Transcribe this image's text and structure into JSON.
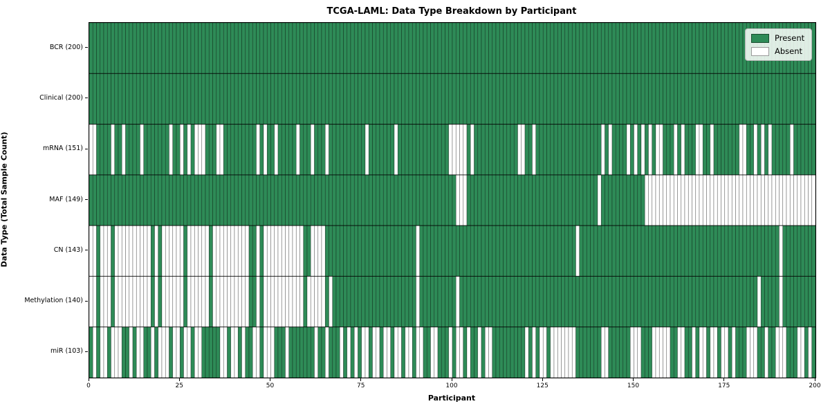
{
  "title": "TCGA-LAML: Data Type Breakdown by Participant",
  "axes": {
    "x_label": "Participant",
    "y_label": "Data Type (Total Sample Count)",
    "x_ticks": [
      0,
      25,
      50,
      75,
      100,
      125,
      150,
      175,
      200
    ]
  },
  "legend": {
    "items": [
      {
        "label": "Present",
        "color": "#2e8b57"
      },
      {
        "label": "Absent",
        "color": "#ffffff"
      }
    ]
  },
  "colors": {
    "present": "#2e8b57",
    "absent": "#ffffff",
    "cell_edge": "#000000",
    "cell_edge_opacity": 0.5,
    "row_separator": "#000000",
    "axis": "#000000"
  },
  "chart_data": {
    "type": "heatmap",
    "title": "TCGA-LAML: Data Type Breakdown by Participant",
    "xlabel": "Participant",
    "ylabel": "Data Type (Total Sample Count)",
    "x_range": [
      0,
      200
    ],
    "n_participants": 200,
    "legend_entries": [
      "Present",
      "Absent"
    ],
    "legend_position": "upper right",
    "rows": [
      {
        "label": "BCR (200)",
        "data_type": "BCR",
        "present_count": 200,
        "absent_indices": []
      },
      {
        "label": "Clinical (200)",
        "data_type": "Clinical",
        "present_count": 200,
        "absent_indices": []
      },
      {
        "label": "mRNA (151)",
        "data_type": "mRNA",
        "present_count": 151,
        "absent_indices": [
          0,
          1,
          6,
          9,
          14,
          22,
          25,
          27,
          29,
          30,
          31,
          35,
          36,
          46,
          48,
          51,
          57,
          61,
          65,
          76,
          84,
          99,
          100,
          101,
          102,
          103,
          105,
          118,
          119,
          122,
          141,
          143,
          148,
          150,
          152,
          154,
          156,
          157,
          161,
          163,
          167,
          168,
          171,
          179,
          180,
          183,
          185,
          187,
          193
        ]
      },
      {
        "label": "MAF (149)",
        "data_type": "MAF",
        "present_count": 149,
        "absent_indices": [
          101,
          102,
          103,
          140,
          153,
          154,
          155,
          156,
          157,
          158,
          159,
          160,
          161,
          162,
          163,
          164,
          165,
          166,
          167,
          168,
          169,
          170,
          171,
          172,
          173,
          174,
          175,
          176,
          177,
          178,
          179,
          180,
          181,
          182,
          183,
          184,
          185,
          186,
          187,
          188,
          189,
          190,
          191,
          192,
          193,
          194,
          195,
          196,
          197,
          198,
          199
        ]
      },
      {
        "label": "CN (143)",
        "data_type": "CN",
        "present_count": 143,
        "absent_indices": [
          0,
          1,
          3,
          4,
          5,
          7,
          8,
          9,
          10,
          11,
          12,
          13,
          14,
          15,
          16,
          18,
          20,
          21,
          22,
          23,
          24,
          25,
          27,
          28,
          29,
          30,
          31,
          32,
          34,
          35,
          36,
          37,
          38,
          39,
          40,
          41,
          42,
          43,
          46,
          48,
          49,
          50,
          51,
          52,
          53,
          54,
          55,
          56,
          57,
          58,
          61,
          62,
          63,
          64,
          90,
          134,
          190
        ]
      },
      {
        "label": "Methylation (140)",
        "data_type": "Methylation",
        "present_count": 140,
        "absent_indices": [
          0,
          1,
          3,
          4,
          5,
          7,
          8,
          9,
          10,
          11,
          12,
          13,
          14,
          15,
          16,
          18,
          20,
          21,
          22,
          23,
          24,
          25,
          27,
          28,
          29,
          30,
          31,
          32,
          34,
          35,
          36,
          37,
          38,
          39,
          40,
          41,
          42,
          43,
          46,
          48,
          49,
          50,
          51,
          52,
          53,
          54,
          55,
          56,
          57,
          58,
          60,
          61,
          62,
          63,
          64,
          66,
          90,
          101,
          184,
          190
        ]
      },
      {
        "label": "miR (103)",
        "data_type": "miR",
        "present_count": 103,
        "absent_indices": [
          1,
          3,
          4,
          6,
          7,
          8,
          11,
          13,
          14,
          17,
          19,
          20,
          21,
          23,
          24,
          26,
          27,
          29,
          30,
          36,
          37,
          39,
          40,
          42,
          45,
          46,
          48,
          49,
          50,
          54,
          62,
          65,
          69,
          71,
          73,
          75,
          76,
          78,
          79,
          81,
          82,
          84,
          85,
          87,
          88,
          90,
          91,
          94,
          95,
          99,
          101,
          102,
          104,
          107,
          109,
          110,
          120,
          122,
          124,
          125,
          127,
          128,
          129,
          130,
          131,
          132,
          133,
          141,
          142,
          149,
          150,
          151,
          155,
          156,
          157,
          158,
          159,
          162,
          163,
          166,
          168,
          169,
          171,
          172,
          174,
          175,
          177,
          181,
          182,
          183,
          186,
          189,
          190,
          191,
          195,
          196,
          198
        ]
      }
    ]
  }
}
